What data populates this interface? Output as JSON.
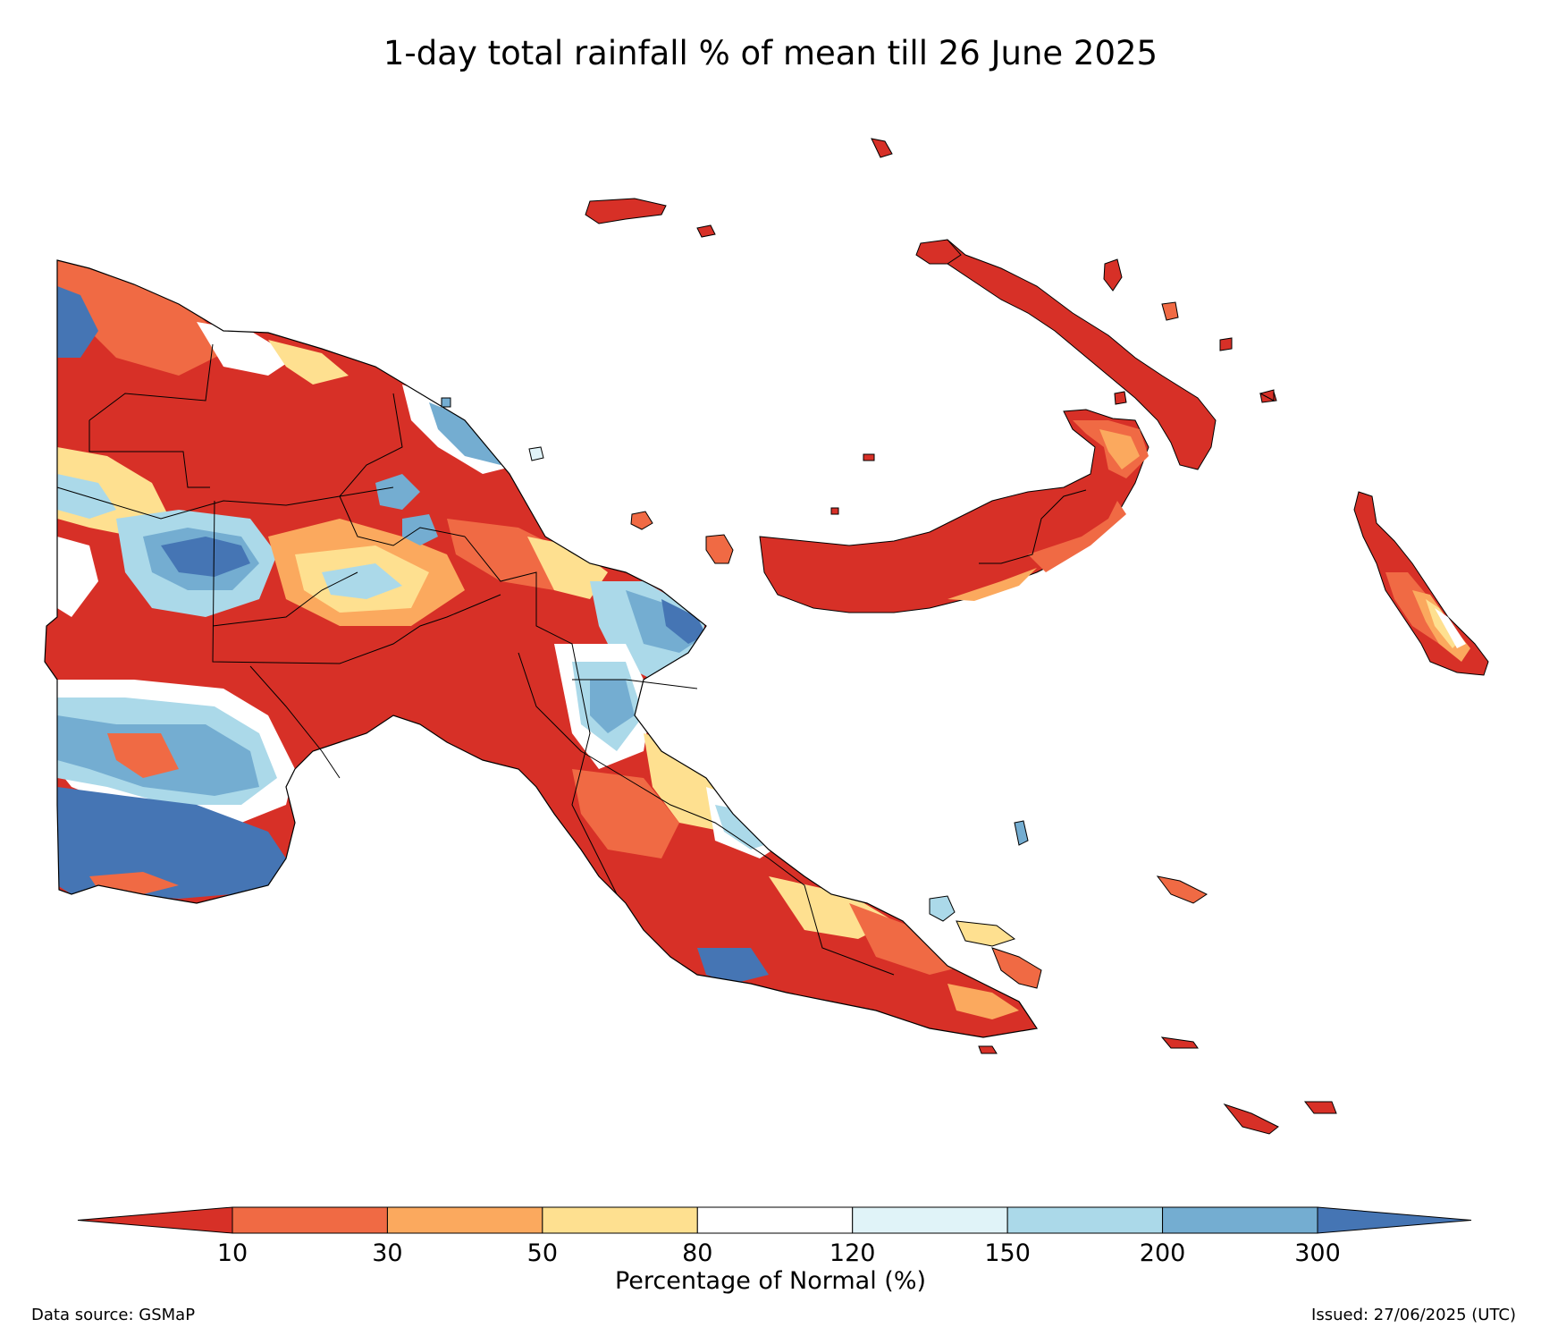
{
  "title": "1-day total rainfall % of mean till 26 June 2025",
  "colorbar": {
    "label": "Percentage of Normal (%)",
    "ticks": [
      "10",
      "30",
      "50",
      "80",
      "120",
      "150",
      "200",
      "300"
    ],
    "bins": [
      {
        "range": "<10",
        "color": "#d73027"
      },
      {
        "range": "10-30",
        "color": "#f06a44"
      },
      {
        "range": "30-50",
        "color": "#fba95e"
      },
      {
        "range": "50-80",
        "color": "#fee090"
      },
      {
        "range": "80-120",
        "color": "#ffffff"
      },
      {
        "range": "120-150",
        "color": "#e0f3f8"
      },
      {
        "range": "150-200",
        "color": "#abd9e9"
      },
      {
        "range": "200-300",
        "color": "#74add1"
      },
      {
        "range": ">300",
        "color": "#4575b4"
      }
    ]
  },
  "footer": {
    "source": "Data source: GSMaP",
    "issued": "Issued: 27/06/2025 (UTC)"
  },
  "map": {
    "region": "Papua New Guinea",
    "dominant_category": "<10",
    "outline_color": "#000000"
  }
}
